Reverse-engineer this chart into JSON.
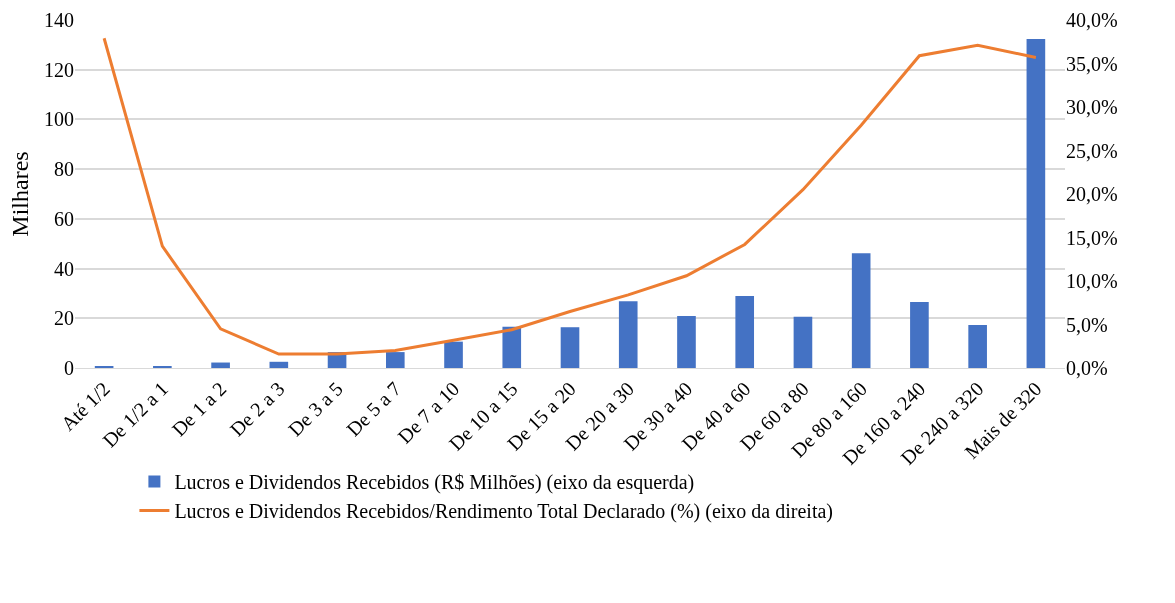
{
  "chart_data": {
    "type": "bar",
    "ylabel": "Milhares",
    "categories": [
      "Até 1/2",
      "De 1/2 a 1",
      "De 1 a 2",
      "De 2 a 3",
      "De 3 a 5",
      "De 5 a 7",
      "De 7 a 10",
      "De 10 a 15",
      "De 15 a 20",
      "De 20 a 30",
      "De 30 a 40",
      "De 40 a 60",
      "De 60 a 80",
      "De 80 a 160",
      "De 160 a 240",
      "De 240 a 320",
      "Mais de 320"
    ],
    "series": [
      {
        "name": "Lucros e Dividendos Recebidos (R$ Milhões) (eixo da esquerda)",
        "color": "#4472c4",
        "values": [
          0.5,
          0.7,
          2.2,
          2.5,
          6.4,
          6.4,
          10.6,
          16.6,
          16.4,
          26.9,
          20.9,
          29.0,
          20.6,
          46.2,
          26.6,
          17.3,
          132.4
        ]
      },
      {
        "name": "Lucros e Dividendos Recebidos/Rendimento Total Declarado (%) (eixo da direita)",
        "type": "line",
        "axis": "y2",
        "color": "#ed7d31",
        "marker": "none",
        "line_style": "solid",
        "values": [
          37.9,
          14.0,
          4.5,
          1.6,
          1.6,
          2.0,
          3.2,
          4.4,
          6.5,
          8.4,
          10.6,
          14.2,
          20.5,
          27.9,
          35.9,
          37.1,
          35.7
        ]
      }
    ],
    "ylim": [
      0,
      140
    ],
    "yticks": [
      0,
      20,
      40,
      60,
      80,
      100,
      120,
      140
    ],
    "y2lim": [
      0,
      40
    ],
    "y2ticks": [
      {
        "value": 0,
        "label": "0,0%"
      },
      {
        "value": 5,
        "label": "5,0%"
      },
      {
        "value": 10,
        "label": "10,0%"
      },
      {
        "value": 15,
        "label": "15,0%"
      },
      {
        "value": 20,
        "label": "20,0%"
      },
      {
        "value": 25,
        "label": "25,0%"
      },
      {
        "value": 30,
        "label": "30,0%"
      },
      {
        "value": 35,
        "label": "35,0%"
      },
      {
        "value": 40,
        "label": "40,0%"
      }
    ],
    "grid": "y",
    "legend": "bottom"
  }
}
